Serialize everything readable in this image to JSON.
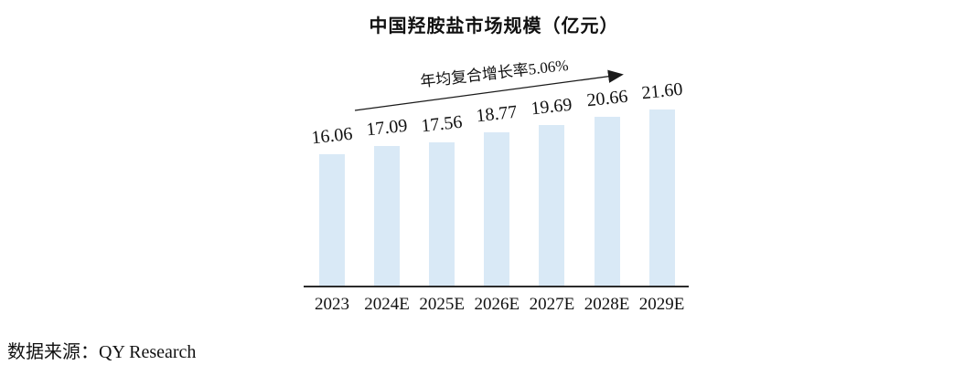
{
  "colors": {
    "bar_fill": "#D9E9F6",
    "axis_line": "#2B2B2B",
    "text": "#111111",
    "arrow": "#1A1A1A",
    "background": "#FFFFFF"
  },
  "chart_data": {
    "type": "bar",
    "title": "中国羟胺盐市场规模（亿元）",
    "annotation": "年均复合增长率5.06%",
    "source": "数据来源：QY Research",
    "categories": [
      "2023",
      "2024E",
      "2025E",
      "2026E",
      "2027E",
      "2028E",
      "2029E"
    ],
    "values": [
      16.06,
      17.09,
      17.56,
      18.77,
      19.69,
      20.66,
      21.6
    ],
    "value_labels": [
      "16.06",
      "17.09",
      "17.56",
      "18.77",
      "19.69",
      "20.66",
      "21.60"
    ],
    "xlabel": "",
    "ylabel": "",
    "ylim": [
      0,
      22
    ],
    "grid": false,
    "legend": "none"
  }
}
